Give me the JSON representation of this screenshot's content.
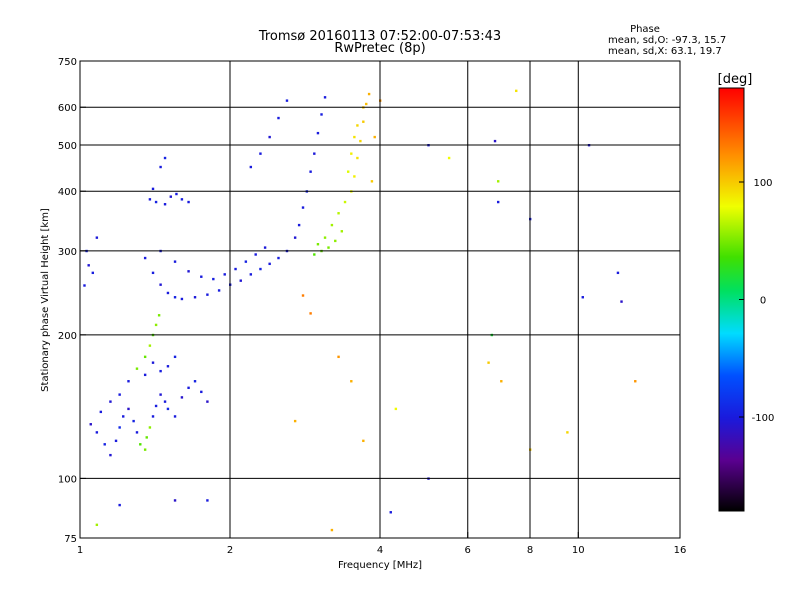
{
  "chart_data": {
    "type": "scatter",
    "title": "Tromsø 20160113 07:52:00-07:53:43",
    "subtitle": "RwPretec (8p)",
    "xlabel": "Frequency [MHz]",
    "ylabel": "Stationary phase Virtual Height [km]",
    "x_scale": "log",
    "y_scale": "log",
    "xlim": [
      1,
      16
    ],
    "ylim": [
      75,
      750
    ],
    "xticks": [
      1,
      2,
      4,
      6,
      8,
      10,
      16
    ],
    "xtick_labels": [
      "1",
      "2",
      "4",
      "6",
      "8",
      "10",
      "16"
    ],
    "yticks": [
      75,
      100,
      200,
      300,
      400,
      500,
      600,
      750
    ],
    "ytick_labels": [
      "75",
      "100",
      "200",
      "300",
      "400",
      "500",
      "600",
      "750"
    ],
    "x_gridlines": [
      2,
      4,
      6,
      8,
      10
    ],
    "y_gridlines": [
      100,
      200,
      300,
      400,
      500,
      600
    ],
    "grid": true,
    "stats": {
      "header": "Phase",
      "line_o": "mean, sd,O: -97.3, 15.7",
      "line_x": "mean, sd,X: 63.1, 19.7"
    },
    "colorbar": {
      "label": "[deg]",
      "min": -180,
      "max": 180,
      "ticks": [
        100,
        0,
        -100
      ],
      "tick_labels": [
        "100",
        "0",
        "-100"
      ],
      "colormap": "rainbow"
    },
    "series": [
      {
        "points": [
          [
            1.02,
            254,
            -100
          ],
          [
            1.04,
            280,
            -105
          ],
          [
            1.06,
            270,
            -98
          ],
          [
            1.08,
            320,
            -102
          ],
          [
            1.03,
            300,
            -95
          ],
          [
            1.05,
            130,
            -110
          ],
          [
            1.08,
            125,
            -100
          ],
          [
            1.12,
            118,
            -95
          ],
          [
            1.15,
            112,
            -105
          ],
          [
            1.18,
            120,
            -100
          ],
          [
            1.2,
            128,
            -90
          ],
          [
            1.22,
            135,
            -100
          ],
          [
            1.25,
            140,
            -110
          ],
          [
            1.28,
            132,
            -95
          ],
          [
            1.3,
            125,
            -100
          ],
          [
            1.32,
            118,
            40
          ],
          [
            1.35,
            115,
            50
          ],
          [
            1.36,
            122,
            45
          ],
          [
            1.38,
            128,
            55
          ],
          [
            1.4,
            135,
            -100
          ],
          [
            1.42,
            142,
            -98
          ],
          [
            1.45,
            150,
            -105
          ],
          [
            1.48,
            145,
            -100
          ],
          [
            1.5,
            140,
            -92
          ],
          [
            1.55,
            135,
            -100
          ],
          [
            1.6,
            148,
            -108
          ],
          [
            1.65,
            155,
            -100
          ],
          [
            1.7,
            160,
            -95
          ],
          [
            1.75,
            152,
            -100
          ],
          [
            1.8,
            145,
            -110
          ],
          [
            1.25,
            160,
            -100
          ],
          [
            1.3,
            170,
            50
          ],
          [
            1.35,
            180,
            45
          ],
          [
            1.38,
            190,
            60
          ],
          [
            1.4,
            200,
            40
          ],
          [
            1.42,
            210,
            55
          ],
          [
            1.44,
            220,
            50
          ],
          [
            1.35,
            165,
            -100
          ],
          [
            1.4,
            175,
            -102
          ],
          [
            1.45,
            168,
            -98
          ],
          [
            1.5,
            172,
            -100
          ],
          [
            1.55,
            180,
            -95
          ],
          [
            1.2,
            150,
            -100
          ],
          [
            1.15,
            145,
            -105
          ],
          [
            1.1,
            138,
            -100
          ]
        ]
      },
      {
        "points": [
          [
            1.35,
            290,
            -100
          ],
          [
            1.4,
            270,
            -98
          ],
          [
            1.45,
            255,
            -105
          ],
          [
            1.5,
            245,
            -100
          ],
          [
            1.55,
            240,
            -95
          ],
          [
            1.6,
            238,
            -100
          ],
          [
            1.7,
            240,
            -102
          ],
          [
            1.8,
            243,
            -100
          ],
          [
            1.9,
            248,
            -98
          ],
          [
            2.0,
            255,
            -100
          ],
          [
            2.1,
            260,
            -105
          ],
          [
            2.2,
            268,
            -100
          ],
          [
            2.3,
            275,
            -95
          ],
          [
            2.4,
            282,
            -100
          ],
          [
            2.5,
            290,
            -98
          ],
          [
            2.6,
            300,
            -100
          ],
          [
            2.7,
            320,
            -105
          ],
          [
            2.75,
            340,
            -100
          ],
          [
            2.8,
            370,
            -100
          ],
          [
            2.85,
            400,
            -95
          ],
          [
            2.9,
            440,
            -100
          ],
          [
            2.95,
            480,
            -102
          ],
          [
            3.0,
            530,
            -100
          ],
          [
            3.05,
            580,
            -98
          ],
          [
            3.1,
            630,
            -100
          ],
          [
            1.45,
            300,
            -100
          ],
          [
            1.55,
            285,
            -100
          ],
          [
            1.65,
            272,
            -105
          ],
          [
            1.75,
            265,
            -100
          ],
          [
            1.85,
            262,
            -98
          ],
          [
            1.95,
            268,
            -100
          ],
          [
            2.05,
            275,
            -100
          ],
          [
            2.15,
            285,
            -95
          ],
          [
            2.25,
            295,
            -100
          ],
          [
            2.35,
            305,
            -102
          ],
          [
            1.38,
            385,
            -100
          ],
          [
            1.42,
            380,
            -95
          ],
          [
            1.48,
            376,
            -100
          ],
          [
            1.52,
            390,
            -105
          ],
          [
            1.56,
            395,
            -100
          ],
          [
            1.6,
            385,
            -98
          ],
          [
            1.65,
            380,
            -100
          ],
          [
            1.4,
            405,
            -100
          ],
          [
            1.45,
            450,
            -100
          ],
          [
            1.48,
            470,
            -95
          ],
          [
            2.2,
            450,
            -100
          ],
          [
            2.3,
            480,
            -100
          ],
          [
            2.4,
            520,
            -105
          ],
          [
            2.5,
            570,
            -100
          ],
          [
            2.6,
            620,
            -98
          ]
        ]
      },
      {
        "points": [
          [
            3.0,
            310,
            50
          ],
          [
            3.1,
            320,
            55
          ],
          [
            3.2,
            340,
            60
          ],
          [
            3.3,
            360,
            65
          ],
          [
            3.4,
            380,
            70
          ],
          [
            3.5,
            400,
            80
          ],
          [
            3.55,
            430,
            85
          ],
          [
            3.6,
            470,
            90
          ],
          [
            3.65,
            510,
            95
          ],
          [
            3.7,
            560,
            100
          ],
          [
            3.75,
            610,
            105
          ],
          [
            3.8,
            640,
            110
          ],
          [
            3.45,
            440,
            75
          ],
          [
            3.5,
            480,
            85
          ],
          [
            3.55,
            520,
            90
          ],
          [
            3.6,
            550,
            95
          ],
          [
            3.7,
            600,
            100
          ],
          [
            3.85,
            420,
            100
          ],
          [
            3.9,
            520,
            110
          ],
          [
            4.0,
            620,
            120
          ],
          [
            3.35,
            330,
            60
          ],
          [
            3.25,
            315,
            55
          ],
          [
            3.15,
            305,
            50
          ],
          [
            3.05,
            300,
            45
          ],
          [
            2.95,
            295,
            40
          ]
        ]
      },
      {
        "points": [
          [
            5.0,
            500,
            -100
          ],
          [
            5.5,
            470,
            80
          ],
          [
            6.8,
            510,
            -110
          ],
          [
            6.9,
            420,
            60
          ],
          [
            6.9,
            380,
            -100
          ],
          [
            7.5,
            650,
            90
          ],
          [
            8.0,
            350,
            -100
          ],
          [
            8.0,
            115,
            100
          ],
          [
            9.5,
            125,
            95
          ],
          [
            10.2,
            240,
            -100
          ],
          [
            10.5,
            500,
            -105
          ],
          [
            12.0,
            270,
            -100
          ],
          [
            12.2,
            235,
            -110
          ],
          [
            13.0,
            160,
            120
          ],
          [
            6.6,
            175,
            100
          ],
          [
            7.0,
            160,
            110
          ],
          [
            6.7,
            200,
            20
          ],
          [
            4.2,
            85,
            -100
          ],
          [
            5.0,
            100,
            -105
          ],
          [
            3.2,
            78,
            110
          ],
          [
            2.7,
            132,
            110
          ],
          [
            2.8,
            242,
            130
          ],
          [
            2.9,
            222,
            130
          ],
          [
            3.3,
            180,
            120
          ],
          [
            3.5,
            160,
            110
          ],
          [
            3.7,
            120,
            110
          ],
          [
            4.3,
            140,
            80
          ],
          [
            1.55,
            90,
            -110
          ],
          [
            1.8,
            90,
            -100
          ],
          [
            1.08,
            80,
            60
          ],
          [
            1.2,
            88,
            -100
          ]
        ]
      }
    ]
  }
}
